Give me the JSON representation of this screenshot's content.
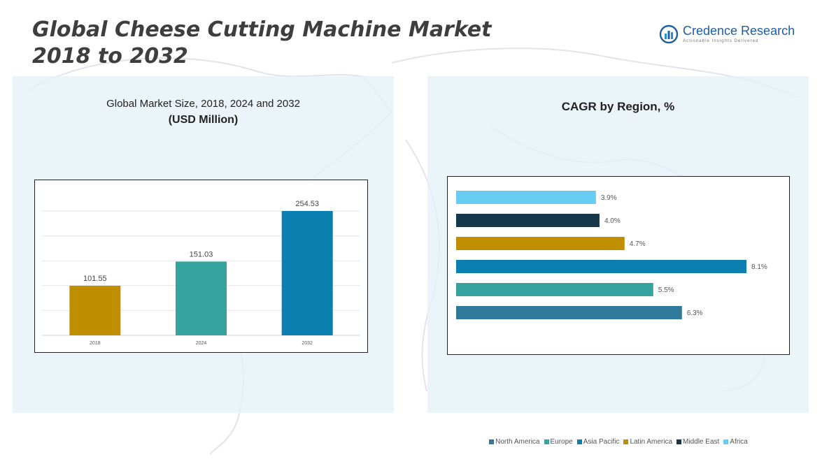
{
  "title_lines": [
    "Global Cheese Cutting Machine Market",
    "2018 to 2032"
  ],
  "logo": {
    "name": "Credence Research",
    "tagline": "Actionable Insights Delivered"
  },
  "left_panel": {
    "title": "Global Market Size, 2018, 2024 and 2032",
    "subtitle": "(USD Million)"
  },
  "right_panel": {
    "title": "CAGR by Region, %"
  },
  "chart_data": [
    {
      "type": "bar",
      "title": "Global Market Size, 2018, 2024 and 2032",
      "subtitle": "(USD Million)",
      "categories": [
        "2018",
        "2024",
        "2032"
      ],
      "values": [
        101.55,
        151.03,
        254.53
      ],
      "value_labels": [
        "101.55",
        "151.03",
        "254.53"
      ],
      "colors": [
        "#bf8f00",
        "#35a4a1",
        "#0a7fb0"
      ],
      "ylim": [
        0,
        254.53
      ],
      "grid": true,
      "legend": "none"
    },
    {
      "type": "bar",
      "orientation": "horizontal",
      "title": "CAGR by Region, %",
      "categories": [
        "Africa",
        "Middle East",
        "Latin America",
        "Asia Pacific",
        "Europe",
        "North America"
      ],
      "values": [
        3.9,
        4.0,
        4.7,
        8.1,
        5.5,
        6.3
      ],
      "value_labels": [
        "3.9%",
        "4.0%",
        "4.7%",
        "8.1%",
        "5.5%",
        "6.3%"
      ],
      "colors": [
        "#66ccf2",
        "#17384b",
        "#bf8f00",
        "#0a7fb0",
        "#35a4a1",
        "#2f7a9b"
      ],
      "xlim": [
        0,
        8.1
      ],
      "grid": false,
      "legend": "bottom",
      "legend_order": [
        "North America",
        "Europe",
        "Asia Pacific",
        "Latin America",
        "Middle East",
        "Africa"
      ]
    }
  ]
}
